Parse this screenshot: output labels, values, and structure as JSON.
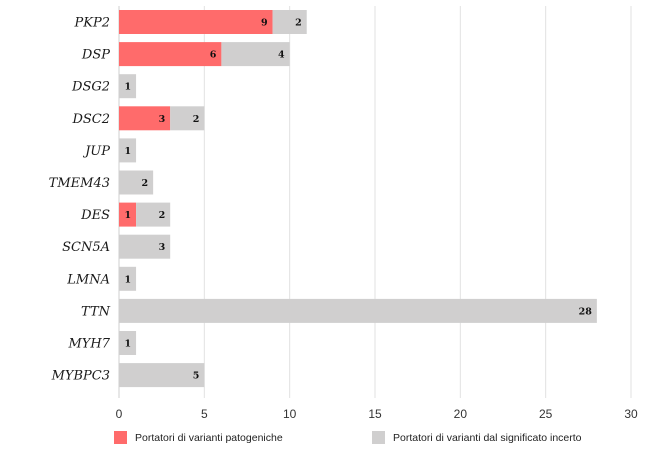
{
  "chart_data": {
    "type": "bar",
    "orientation": "horizontal",
    "stacked": true,
    "categories": [
      "PKP2",
      "DSP",
      "DSG2",
      "DSC2",
      "JUP",
      "TMEM43",
      "DES",
      "SCN5A",
      "LMNA",
      "TTN",
      "MYH7",
      "MYBPC3"
    ],
    "series": [
      {
        "name": "Portatori di varianti patogeniche",
        "color": "#ff6b6b",
        "values": [
          9,
          6,
          0,
          3,
          0,
          0,
          1,
          0,
          0,
          0,
          0,
          0
        ]
      },
      {
        "name": "Portatori di varianti dal significato incerto",
        "color": "#d0cfcf",
        "values": [
          2,
          4,
          1,
          2,
          1,
          2,
          2,
          3,
          1,
          28,
          1,
          5
        ]
      }
    ],
    "xlim": [
      0,
      30
    ],
    "xticks": [
      0,
      5,
      10,
      15,
      20,
      25,
      30
    ],
    "grid": true,
    "legend_position": "bottom",
    "title": "",
    "xlabel": "",
    "ylabel": ""
  }
}
